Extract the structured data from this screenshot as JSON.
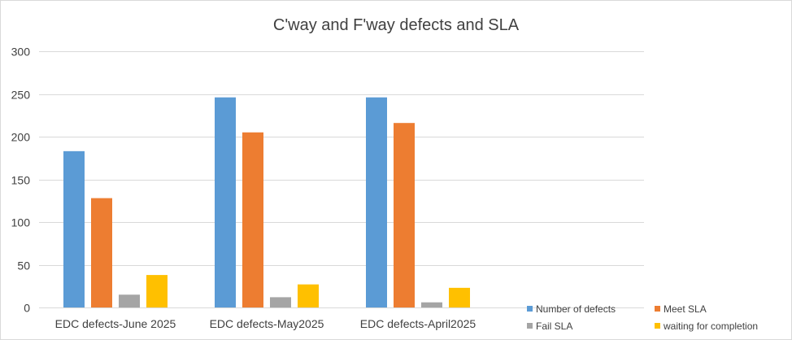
{
  "chart_data": {
    "type": "bar",
    "title": "C'way and F'way defects and SLA",
    "xlabel": "",
    "ylabel": "",
    "ylim": [
      0,
      300
    ],
    "yticks": [
      0,
      50,
      100,
      150,
      200,
      250,
      300
    ],
    "grid": true,
    "legend_position": "bottom-right",
    "categories": [
      "EDC defects-June 2025",
      "EDC defects-May2025",
      "EDC defects-April2025"
    ],
    "series": [
      {
        "name": "Number of defects",
        "color": "#5b9bd5",
        "values": [
          183,
          246,
          246
        ]
      },
      {
        "name": "Meet SLA",
        "color": "#ed7d31",
        "values": [
          128,
          205,
          216
        ]
      },
      {
        "name": "Fail SLA",
        "color": "#a5a5a5",
        "values": [
          15,
          12,
          6
        ]
      },
      {
        "name": "waiting for completion",
        "color": "#ffc000",
        "values": [
          38,
          27,
          23
        ]
      }
    ]
  }
}
